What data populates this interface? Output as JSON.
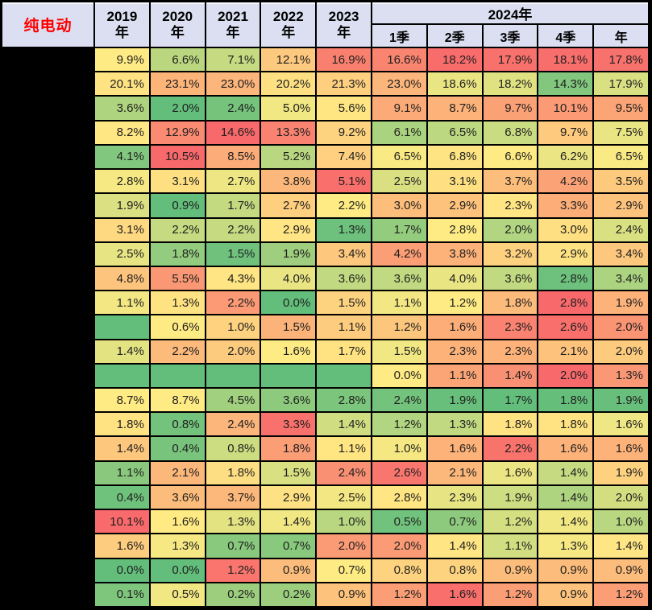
{
  "table": {
    "corner_label": "纯电动",
    "corner_color": "#FF0000",
    "header_bg": "#DBDFF1",
    "year_columns": [
      "2019年",
      "2020年",
      "2021年",
      "2022年",
      "2023年"
    ],
    "group_2024": {
      "label": "2024年",
      "sub_columns": [
        "1季",
        "2季",
        "3季",
        "4季",
        "年"
      ]
    },
    "row_labels_redacted": true
  },
  "chart_data": {
    "type": "heatmap",
    "title": "纯电动",
    "unit": "%",
    "columns": [
      "2019年",
      "2020年",
      "2021年",
      "2022年",
      "2023年",
      "2024年 1季",
      "2024年 2季",
      "2024年 3季",
      "2024年 4季",
      "2024年 年"
    ],
    "values": [
      [
        9.9,
        6.6,
        7.1,
        12.1,
        16.9,
        16.6,
        18.2,
        17.9,
        18.1,
        17.8
      ],
      [
        20.1,
        23.1,
        23.0,
        20.2,
        21.3,
        23.0,
        18.6,
        18.2,
        14.3,
        17.9
      ],
      [
        3.6,
        2.0,
        2.4,
        5.0,
        5.6,
        9.1,
        8.7,
        9.7,
        10.1,
        9.5
      ],
      [
        8.2,
        12.9,
        14.6,
        13.3,
        9.2,
        6.1,
        6.5,
        6.8,
        9.7,
        7.5
      ],
      [
        4.1,
        10.5,
        8.5,
        5.2,
        7.4,
        6.5,
        6.8,
        6.6,
        6.2,
        6.5
      ],
      [
        2.8,
        3.1,
        2.7,
        3.8,
        5.1,
        2.5,
        3.1,
        3.7,
        4.2,
        3.5
      ],
      [
        1.9,
        0.9,
        1.7,
        2.7,
        2.2,
        3.0,
        2.9,
        2.3,
        3.3,
        2.9
      ],
      [
        3.1,
        2.2,
        2.2,
        2.9,
        1.3,
        1.7,
        2.8,
        2.0,
        3.0,
        2.4
      ],
      [
        2.5,
        1.8,
        1.5,
        1.9,
        3.4,
        4.2,
        3.8,
        3.2,
        2.9,
        3.4
      ],
      [
        4.8,
        5.5,
        4.3,
        4.0,
        3.6,
        3.6,
        4.0,
        3.6,
        2.8,
        3.4
      ],
      [
        1.1,
        1.3,
        2.2,
        0.0,
        1.5,
        1.1,
        1.2,
        1.8,
        2.8,
        1.9
      ],
      [
        null,
        0.6,
        1.0,
        1.5,
        1.1,
        1.2,
        1.6,
        2.3,
        2.6,
        2.0
      ],
      [
        1.4,
        2.2,
        2.0,
        1.6,
        1.7,
        1.5,
        2.3,
        2.3,
        2.1,
        2.0
      ],
      [
        null,
        null,
        null,
        null,
        null,
        0.0,
        1.1,
        1.4,
        2.0,
        1.3
      ],
      [
        8.7,
        8.7,
        4.5,
        3.6,
        2.8,
        2.4,
        1.9,
        1.7,
        1.8,
        1.9
      ],
      [
        1.8,
        0.8,
        2.4,
        3.3,
        1.4,
        1.2,
        1.3,
        1.8,
        1.8,
        1.6
      ],
      [
        1.4,
        0.4,
        0.8,
        1.8,
        1.1,
        1.0,
        1.6,
        2.2,
        1.6,
        1.6
      ],
      [
        1.1,
        2.1,
        1.8,
        1.5,
        2.4,
        2.6,
        2.1,
        1.6,
        1.4,
        1.9
      ],
      [
        0.4,
        3.6,
        3.7,
        2.9,
        2.5,
        2.8,
        2.3,
        1.9,
        1.4,
        2.0
      ],
      [
        10.1,
        1.6,
        1.3,
        1.4,
        1.0,
        0.5,
        0.7,
        1.2,
        1.4,
        1.0
      ],
      [
        1.6,
        1.3,
        0.7,
        0.7,
        2.0,
        2.0,
        1.4,
        1.1,
        1.3,
        1.4
      ],
      [
        0.0,
        0.0,
        1.2,
        0.9,
        0.7,
        0.8,
        0.8,
        0.9,
        0.9,
        0.9
      ],
      [
        0.1,
        0.5,
        0.2,
        0.2,
        0.9,
        1.2,
        1.6,
        1.2,
        0.9,
        1.2
      ]
    ],
    "color_scale": {
      "low": "#63BE7B",
      "mid": "#FFEB84",
      "high": "#F8696B",
      "blank_fill": "#63BE7B"
    },
    "row_color_anchors": [
      [
        2.4,
        9.9,
        18.4
      ],
      [
        13.0,
        19.5,
        28.0
      ],
      [
        2.0,
        5.3,
        13.0
      ],
      [
        4.5,
        8.0,
        14.6
      ],
      [
        3.5,
        6.6,
        10.5
      ],
      [
        1.2,
        2.9,
        5.2
      ],
      [
        0.9,
        2.2,
        4.5
      ],
      [
        1.2,
        2.8,
        5.0
      ],
      [
        1.4,
        2.7,
        5.2
      ],
      [
        2.7,
        4.2,
        6.2
      ],
      [
        0.0,
        1.2,
        2.8
      ],
      [
        -1.0,
        0.6,
        2.7
      ],
      [
        0.5,
        1.6,
        3.2
      ],
      [
        -2.0,
        0.0,
        2.0
      ],
      [
        1.7,
        8.7,
        20.0
      ],
      [
        0.7,
        1.7,
        3.4
      ],
      [
        0.3,
        1.05,
        2.3
      ],
      [
        0.9,
        1.7,
        2.7
      ],
      [
        0.2,
        2.7,
        5.2
      ],
      [
        0.4,
        1.5,
        10.2
      ],
      [
        0.5,
        1.35,
        2.4
      ],
      [
        0.0,
        0.7,
        1.25
      ],
      [
        0.0,
        0.55,
        1.65
      ]
    ],
    "legend_position": "none",
    "grid": true
  }
}
